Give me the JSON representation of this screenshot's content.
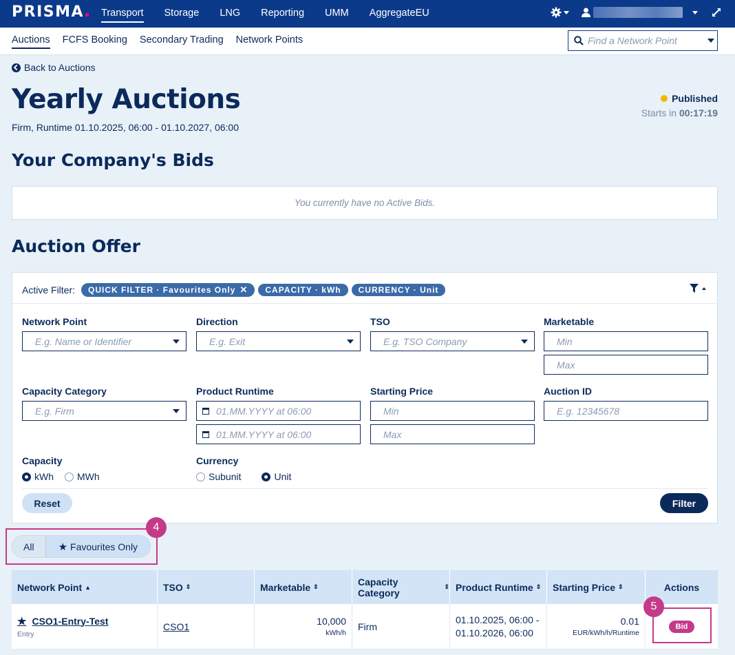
{
  "topnav": {
    "logo": "PRISMA",
    "items": [
      "Transport",
      "Storage",
      "LNG",
      "Reporting",
      "UMM",
      "AggregateEU"
    ]
  },
  "subnav": {
    "items": [
      "Auctions",
      "FCFS Booking",
      "Secondary Trading",
      "Network Points"
    ],
    "search_placeholder": "Find a Network Point"
  },
  "back_label": "Back to Auctions",
  "page_title": "Yearly Auctions",
  "subtitle": "Firm, Runtime 01.10.2025, 06:00 - 01.10.2027, 06:00",
  "status": {
    "label": "Published",
    "countdown_prefix": "Starts in",
    "countdown": "00:17:19",
    "color": "#f2b700"
  },
  "bids": {
    "heading": "Your Company's Bids",
    "empty_text": "You currently have no Active Bids."
  },
  "offer": {
    "heading": "Auction Offer",
    "active_filter_label": "Active Filter:",
    "chips": [
      "QUICK FILTER · Favourites Only",
      "CAPACITY · kWh",
      "CURRENCY · Unit"
    ],
    "fields": {
      "network_point": {
        "label": "Network Point",
        "placeholder": "E.g. Name or Identifier"
      },
      "direction": {
        "label": "Direction",
        "placeholder": "E.g. Exit"
      },
      "tso": {
        "label": "TSO",
        "placeholder": "E.g. TSO Company"
      },
      "marketable": {
        "label": "Marketable",
        "min": "Min",
        "max": "Max"
      },
      "capacity_category": {
        "label": "Capacity Category",
        "placeholder": "E.g. Firm"
      },
      "product_runtime": {
        "label": "Product Runtime",
        "from": "01.MM.YYYY at 06:00",
        "to": "01.MM.YYYY at 06:00"
      },
      "starting_price": {
        "label": "Starting Price",
        "min": "Min",
        "max": "Max"
      },
      "auction_id": {
        "label": "Auction ID",
        "placeholder": "E.g. 12345678"
      }
    },
    "capacity": {
      "label": "Capacity",
      "options": [
        "kWh",
        "MWh"
      ],
      "selected": "kWh"
    },
    "currency": {
      "label": "Currency",
      "options": [
        "Subunit",
        "Unit"
      ],
      "selected": "Unit"
    },
    "reset_label": "Reset",
    "filter_label": "Filter"
  },
  "toggle": {
    "all": "All",
    "favourites": "Favourites Only",
    "active": "favourites"
  },
  "callouts": {
    "toggle": "4",
    "bid": "5",
    "color": "#c53a88"
  },
  "table": {
    "headers": [
      "Network Point",
      "TSO",
      "Marketable",
      "Capacity Category",
      "Product Runtime",
      "Starting Price",
      "Actions"
    ],
    "rows": [
      {
        "network_point": "CSO1-Entry-Test",
        "direction": "Entry",
        "tso": "CSO1",
        "marketable": "10,000",
        "marketable_unit": "kWh/h",
        "capacity_category": "Firm",
        "runtime_line1": "01.10.2025, 06:00 -",
        "runtime_line2": "01.10.2026, 06:00",
        "starting_price": "0.01",
        "price_unit": "EUR/kWh/h/Runtime",
        "action": "Bid"
      }
    ]
  }
}
